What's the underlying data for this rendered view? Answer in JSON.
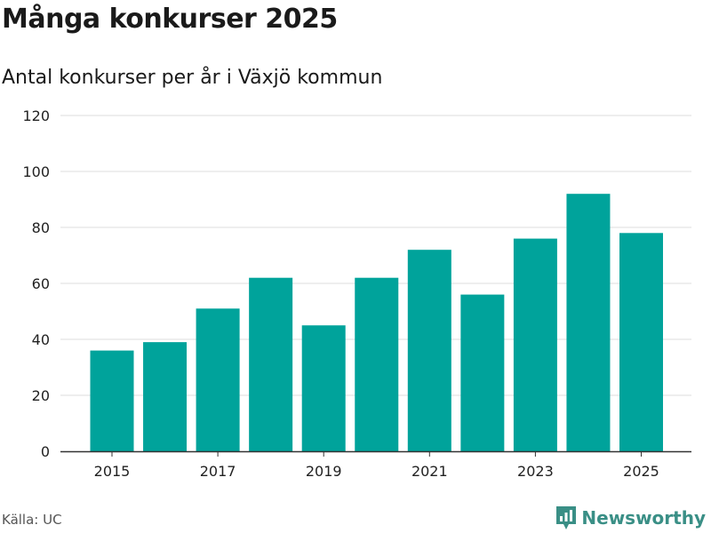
{
  "header": {
    "title": "Många konkurser 2025",
    "subtitle": "Antal konkurser per år i Växjö kommun"
  },
  "footer": {
    "source": "Källa: UC",
    "brand": "Newsworthy"
  },
  "colors": {
    "bar": "#00a39b",
    "brand": "#3a8f86",
    "grid": "#dddddd",
    "axis": "#333333"
  },
  "chart_data": {
    "type": "bar",
    "title": "Många konkurser 2025",
    "subtitle": "Antal konkurser per år i Växjö kommun",
    "categories": [
      "2015",
      "2016",
      "2017",
      "2018",
      "2019",
      "2020",
      "2021",
      "2022",
      "2023",
      "2024",
      "2025"
    ],
    "values": [
      36,
      39,
      51,
      62,
      45,
      62,
      72,
      56,
      76,
      92,
      78
    ],
    "xticks": [
      "2015",
      "2017",
      "2019",
      "2021",
      "2023",
      "2025"
    ],
    "yticks": [
      0,
      20,
      40,
      60,
      80,
      100,
      120
    ],
    "ylim": [
      0,
      120
    ],
    "xlabel": "",
    "ylabel": "",
    "grid": true,
    "legend": "none"
  }
}
